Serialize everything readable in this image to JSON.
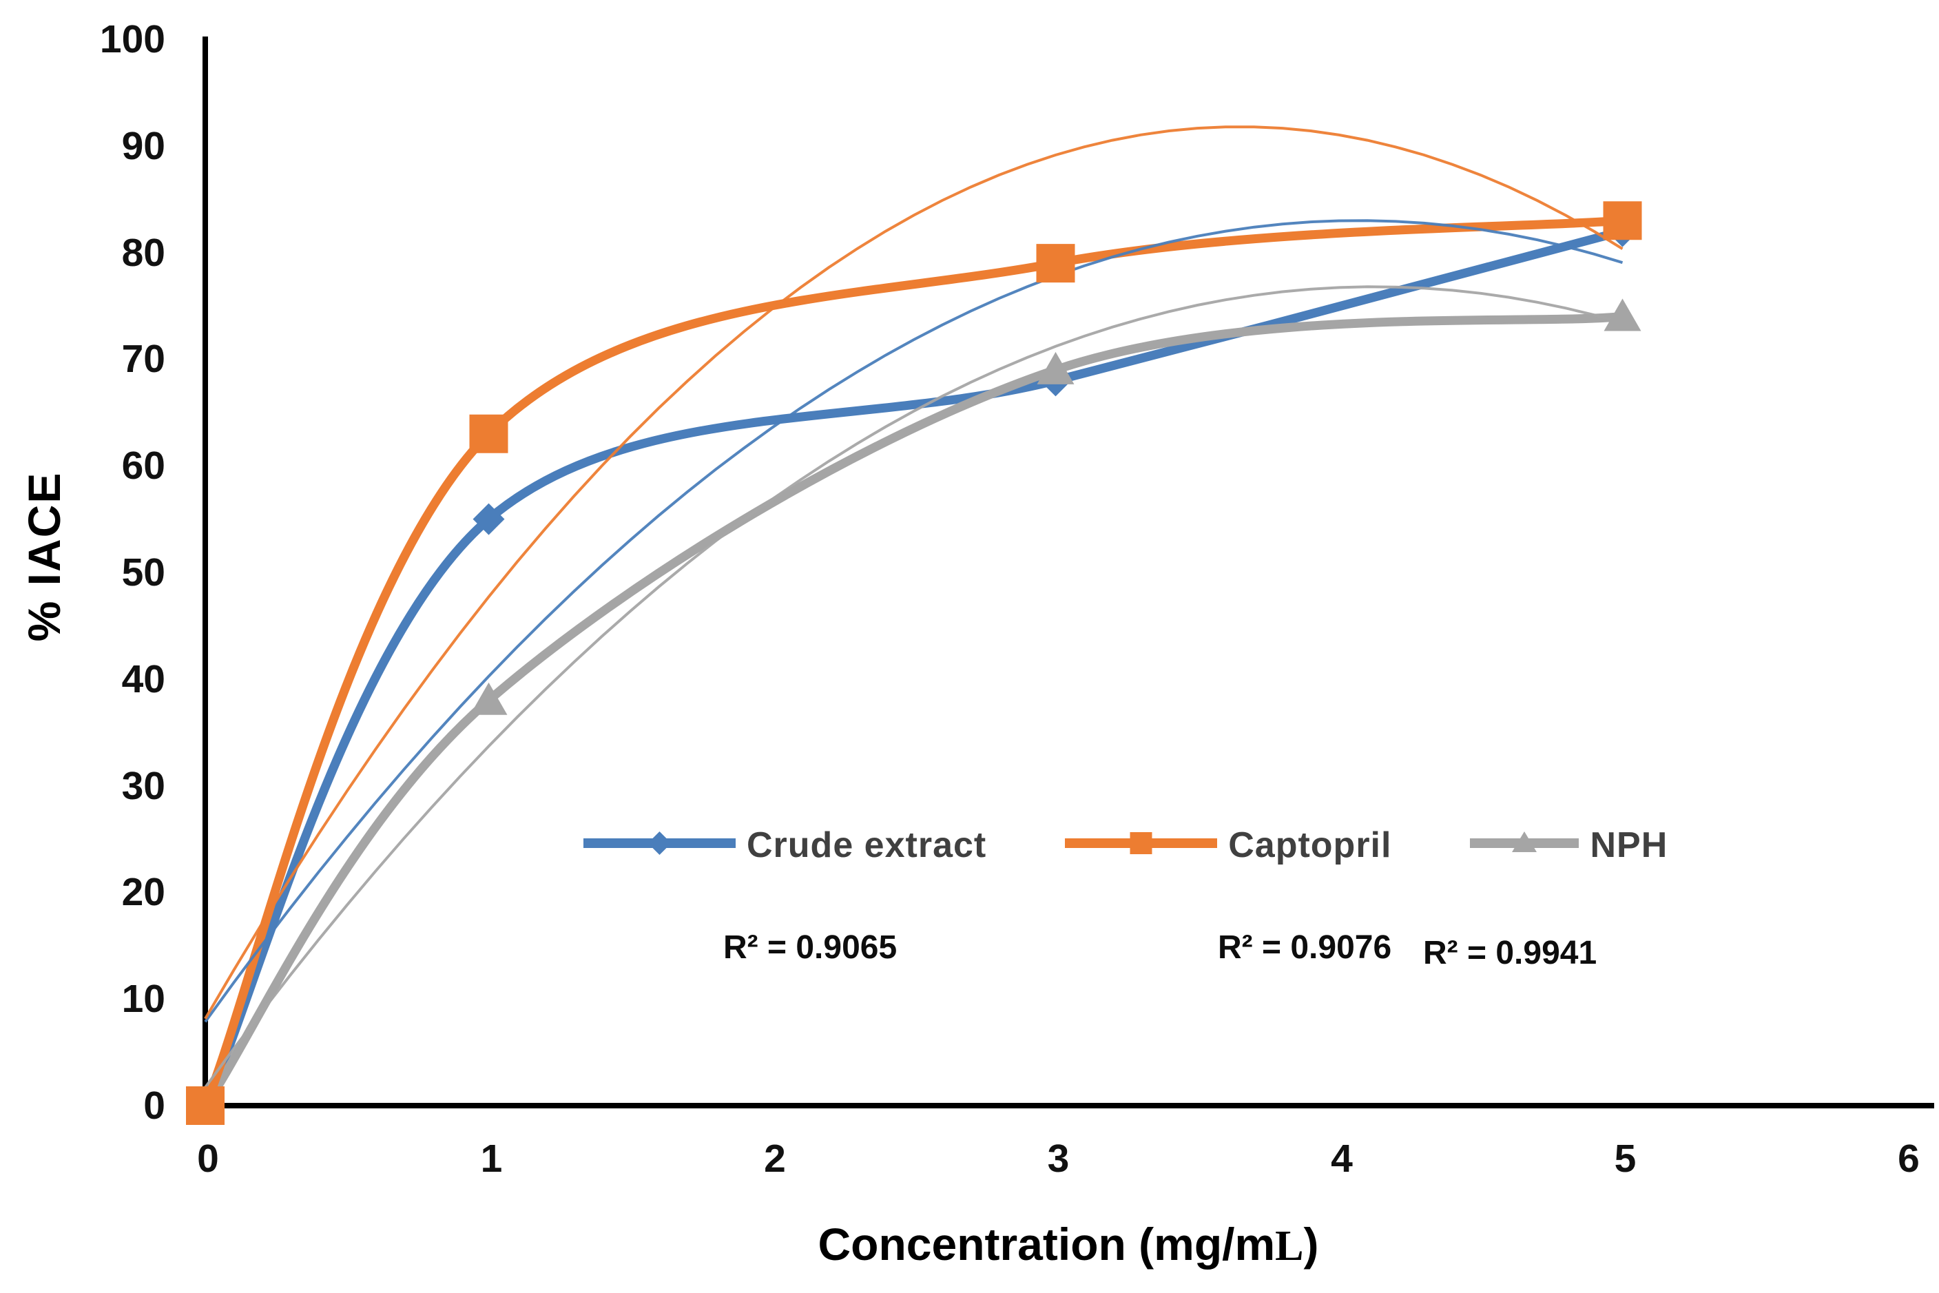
{
  "chart_data": {
    "type": "line",
    "title": "",
    "ylabel": "% IACE",
    "xlabel": "Concentration (mg/mL)",
    "xlabel_parts": {
      "main": "Concentration (mg/m",
      "serif_char": "L",
      "close": ")"
    },
    "xlim": [
      0,
      6
    ],
    "ylim": [
      0,
      100
    ],
    "x_ticks": [
      "0",
      "1",
      "2",
      "3",
      "4",
      "5",
      "6"
    ],
    "y_ticks": [
      "0",
      "10",
      "20",
      "30",
      "40",
      "50",
      "60",
      "70",
      "80",
      "90",
      "100"
    ],
    "grid": false,
    "legend_position": "inside-center",
    "axis_color": "#000000",
    "series": [
      {
        "name": "Crude extract",
        "color": "#4A7EBB",
        "marker": "diamond",
        "x": [
          0,
          1,
          3,
          5
        ],
        "y": [
          0,
          55,
          68,
          82
        ],
        "r2_label": "R² = 0.9065",
        "trendline": {
          "type": "polynomial2",
          "a": -4.54,
          "b": 36.94,
          "c": 7.86
        }
      },
      {
        "name": "Captopril",
        "color": "#ED7D31",
        "marker": "square",
        "x": [
          0,
          1,
          3,
          5
        ],
        "y": [
          0,
          63,
          79,
          83
        ],
        "r2_label": "R² = 0.9076",
        "trendline": {
          "type": "polynomial2",
          "a": -6.28,
          "b": 45.84,
          "c": 8.15
        }
      },
      {
        "name": "NPH",
        "color": "#A5A5A5",
        "marker": "triangle",
        "x": [
          0,
          1,
          3,
          5
        ],
        "y": [
          0,
          38,
          69,
          74
        ],
        "r2_label": "R² = 0.9941",
        "trendline": {
          "type": "polynomial2",
          "a": -4.41,
          "b": 36.39,
          "c": 1.72
        }
      }
    ]
  }
}
